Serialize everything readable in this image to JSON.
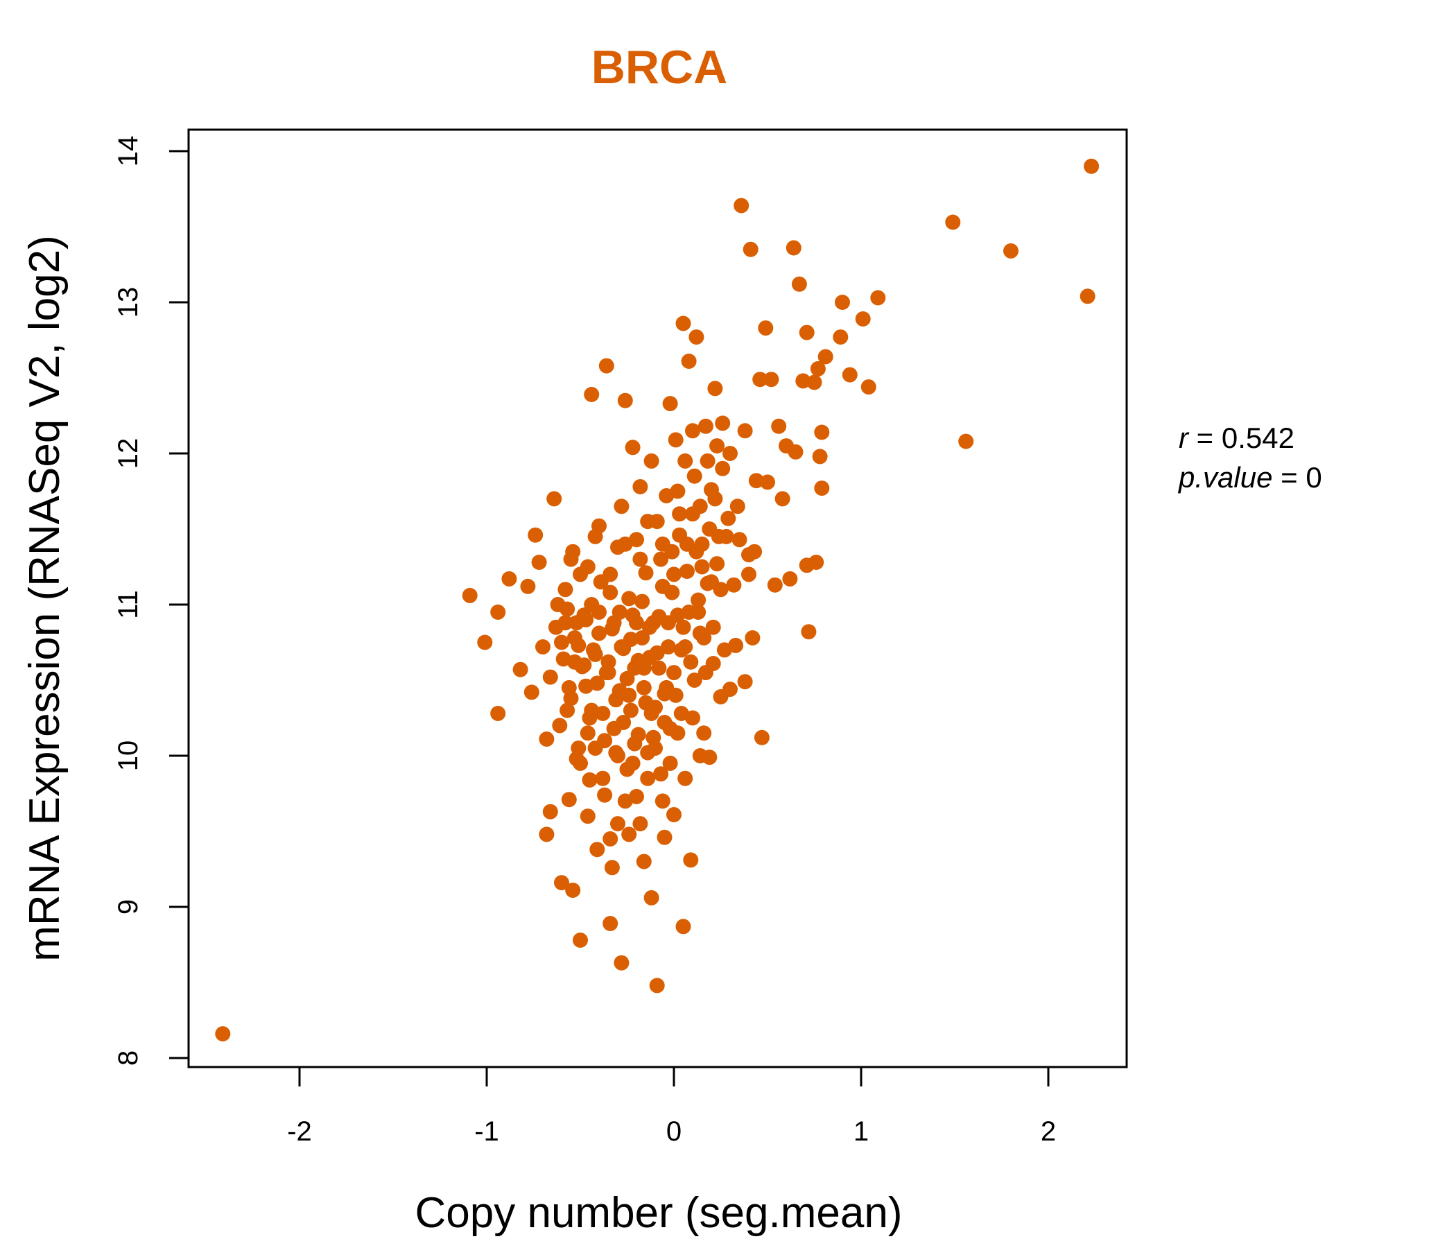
{
  "chart_data": {
    "type": "scatter",
    "title": "BRCA",
    "xlabel": "Copy number (seg.mean)",
    "ylabel": "mRNA Expression (RNASeq V2, log2)",
    "xlim": [
      -2.6,
      2.4
    ],
    "ylim": [
      8,
      14
    ],
    "xticks": [
      "-2",
      "-1",
      "0",
      "1",
      "2"
    ],
    "yticks": [
      "8",
      "9",
      "10",
      "11",
      "12",
      "13",
      "14"
    ],
    "grid": false,
    "color": "#d95f02",
    "stats": {
      "r_label": "r",
      "r_value": "0.542",
      "p_label": "p.value",
      "p_value": "0"
    },
    "points": [
      [
        -2.41,
        8.16
      ],
      [
        -1.09,
        11.06
      ],
      [
        -1.01,
        10.75
      ],
      [
        -0.94,
        10.95
      ],
      [
        -0.94,
        10.28
      ],
      [
        -0.88,
        11.17
      ],
      [
        -0.82,
        10.57
      ],
      [
        -0.78,
        11.12
      ],
      [
        -0.76,
        10.42
      ],
      [
        -0.74,
        11.46
      ],
      [
        -0.72,
        11.28
      ],
      [
        -0.7,
        10.72
      ],
      [
        -0.68,
        10.11
      ],
      [
        -0.68,
        9.48
      ],
      [
        -0.66,
        9.63
      ],
      [
        -0.64,
        11.7
      ],
      [
        -0.62,
        11.0
      ],
      [
        -0.6,
        9.16
      ],
      [
        -0.58,
        10.88
      ],
      [
        -0.57,
        10.3
      ],
      [
        -0.56,
        9.71
      ],
      [
        -0.55,
        11.3
      ],
      [
        -0.54,
        9.11
      ],
      [
        -0.53,
        10.62
      ],
      [
        -0.52,
        9.98
      ],
      [
        -0.51,
        10.73
      ],
      [
        -0.5,
        11.2
      ],
      [
        -0.5,
        8.78
      ],
      [
        -0.48,
        10.93
      ],
      [
        -0.47,
        10.46
      ],
      [
        -0.46,
        10.15
      ],
      [
        -0.45,
        9.84
      ],
      [
        -0.44,
        11.0
      ],
      [
        -0.44,
        12.39
      ],
      [
        -0.42,
        10.67
      ],
      [
        -0.41,
        9.38
      ],
      [
        -0.4,
        10.81
      ],
      [
        -0.4,
        11.52
      ],
      [
        -0.38,
        10.28
      ],
      [
        -0.37,
        9.74
      ],
      [
        -0.36,
        12.58
      ],
      [
        -0.35,
        10.55
      ],
      [
        -0.34,
        11.08
      ],
      [
        -0.34,
        8.89
      ],
      [
        -0.33,
        9.26
      ],
      [
        -0.32,
        10.88
      ],
      [
        -0.31,
        10.02
      ],
      [
        -0.3,
        11.38
      ],
      [
        -0.3,
        9.55
      ],
      [
        -0.29,
        10.43
      ],
      [
        -0.28,
        11.65
      ],
      [
        -0.28,
        8.63
      ],
      [
        -0.27,
        10.71
      ],
      [
        -0.26,
        12.35
      ],
      [
        -0.25,
        9.91
      ],
      [
        -0.24,
        11.04
      ],
      [
        -0.24,
        9.48
      ],
      [
        -0.23,
        10.3
      ],
      [
        -0.22,
        10.93
      ],
      [
        -0.22,
        12.04
      ],
      [
        -0.21,
        10.58
      ],
      [
        -0.2,
        11.43
      ],
      [
        -0.2,
        9.73
      ],
      [
        -0.19,
        10.14
      ],
      [
        -0.18,
        11.78
      ],
      [
        -0.17,
        10.78
      ],
      [
        -0.16,
        9.3
      ],
      [
        -0.16,
        10.45
      ],
      [
        -0.15,
        11.21
      ],
      [
        -0.14,
        10.02
      ],
      [
        -0.13,
        10.65
      ],
      [
        -0.12,
        11.95
      ],
      [
        -0.12,
        9.06
      ],
      [
        -0.11,
        10.88
      ],
      [
        -0.1,
        10.32
      ],
      [
        -0.09,
        11.55
      ],
      [
        -0.09,
        8.48
      ],
      [
        -0.08,
        10.58
      ],
      [
        -0.07,
        9.88
      ],
      [
        -0.06,
        11.12
      ],
      [
        -0.05,
        10.41
      ],
      [
        -0.05,
        9.46
      ],
      [
        -0.04,
        11.72
      ],
      [
        -0.03,
        10.72
      ],
      [
        -0.02,
        12.33
      ],
      [
        -0.02,
        10.18
      ],
      [
        -0.01,
        11.35
      ],
      [
        0.0,
        10.55
      ],
      [
        0.0,
        9.61
      ],
      [
        0.01,
        12.09
      ],
      [
        0.02,
        10.93
      ],
      [
        0.03,
        11.46
      ],
      [
        0.04,
        10.28
      ],
      [
        0.05,
        12.86
      ],
      [
        0.05,
        8.87
      ],
      [
        0.06,
        10.72
      ],
      [
        0.07,
        11.22
      ],
      [
        0.08,
        12.61
      ],
      [
        0.09,
        9.31
      ],
      [
        0.1,
        11.6
      ],
      [
        0.11,
        10.5
      ],
      [
        0.12,
        12.77
      ],
      [
        0.13,
        11.03
      ],
      [
        0.14,
        10.81
      ],
      [
        0.15,
        11.4
      ],
      [
        0.16,
        10.15
      ],
      [
        0.17,
        12.18
      ],
      [
        0.18,
        11.14
      ],
      [
        0.19,
        9.99
      ],
      [
        0.2,
        11.76
      ],
      [
        0.21,
        10.61
      ],
      [
        0.22,
        12.43
      ],
      [
        0.23,
        11.27
      ],
      [
        0.25,
        10.39
      ],
      [
        0.26,
        11.9
      ],
      [
        0.27,
        10.7
      ],
      [
        0.29,
        11.57
      ],
      [
        0.3,
        10.44
      ],
      [
        0.32,
        11.13
      ],
      [
        0.33,
        10.73
      ],
      [
        0.35,
        11.43
      ],
      [
        0.36,
        13.64
      ],
      [
        0.38,
        10.49
      ],
      [
        0.4,
        11.33
      ],
      [
        0.41,
        13.35
      ],
      [
        0.42,
        10.78
      ],
      [
        0.44,
        11.82
      ],
      [
        0.46,
        12.49
      ],
      [
        0.47,
        10.12
      ],
      [
        0.49,
        12.83
      ],
      [
        0.5,
        11.81
      ],
      [
        0.52,
        12.49
      ],
      [
        0.54,
        11.13
      ],
      [
        0.56,
        12.18
      ],
      [
        0.58,
        11.7
      ],
      [
        0.6,
        12.05
      ],
      [
        0.62,
        11.17
      ],
      [
        0.64,
        13.36
      ],
      [
        0.65,
        12.01
      ],
      [
        0.67,
        13.12
      ],
      [
        0.69,
        12.48
      ],
      [
        0.71,
        12.8
      ],
      [
        0.71,
        11.26
      ],
      [
        0.72,
        10.82
      ],
      [
        0.75,
        12.47
      ],
      [
        0.76,
        11.28
      ],
      [
        0.77,
        12.56
      ],
      [
        0.78,
        11.98
      ],
      [
        0.79,
        12.14
      ],
      [
        0.79,
        11.77
      ],
      [
        0.81,
        12.64
      ],
      [
        0.89,
        12.77
      ],
      [
        0.9,
        13.0
      ],
      [
        0.94,
        12.52
      ],
      [
        1.01,
        12.89
      ],
      [
        1.04,
        12.44
      ],
      [
        1.09,
        13.03
      ],
      [
        1.49,
        13.53
      ],
      [
        1.56,
        12.08
      ],
      [
        1.8,
        13.34
      ],
      [
        2.21,
        13.04
      ],
      [
        2.23,
        13.9
      ],
      [
        -0.66,
        10.52
      ],
      [
        -0.63,
        10.85
      ],
      [
        -0.61,
        10.2
      ],
      [
        -0.59,
        10.64
      ],
      [
        -0.57,
        10.97
      ],
      [
        -0.55,
        10.38
      ],
      [
        -0.53,
        10.78
      ],
      [
        -0.51,
        10.05
      ],
      [
        -0.49,
        10.59
      ],
      [
        -0.47,
        10.9
      ],
      [
        -0.45,
        10.25
      ],
      [
        -0.43,
        10.7
      ],
      [
        -0.41,
        10.48
      ],
      [
        -0.39,
        11.15
      ],
      [
        -0.37,
        10.1
      ],
      [
        -0.35,
        10.62
      ],
      [
        -0.33,
        10.84
      ],
      [
        -0.31,
        10.37
      ],
      [
        -0.29,
        10.95
      ],
      [
        -0.27,
        10.22
      ],
      [
        -0.25,
        10.51
      ],
      [
        -0.23,
        10.77
      ],
      [
        -0.21,
        10.08
      ],
      [
        -0.19,
        10.63
      ],
      [
        -0.17,
        11.02
      ],
      [
        -0.15,
        10.35
      ],
      [
        -0.13,
        10.85
      ],
      [
        -0.11,
        10.12
      ],
      [
        -0.09,
        10.68
      ],
      [
        -0.07,
        11.3
      ],
      [
        -0.05,
        10.22
      ],
      [
        -0.03,
        10.88
      ],
      [
        -0.01,
        11.08
      ],
      [
        0.01,
        10.4
      ],
      [
        0.03,
        11.6
      ],
      [
        0.05,
        10.85
      ],
      [
        0.07,
        11.4
      ],
      [
        0.09,
        10.62
      ],
      [
        0.11,
        11.85
      ],
      [
        0.13,
        10.95
      ],
      [
        0.15,
        11.25
      ],
      [
        0.17,
        10.55
      ],
      [
        0.19,
        11.5
      ],
      [
        0.21,
        10.85
      ],
      [
        0.23,
        12.05
      ],
      [
        0.25,
        11.1
      ],
      [
        -0.6,
        10.75
      ],
      [
        -0.56,
        10.45
      ],
      [
        -0.52,
        10.88
      ],
      [
        -0.48,
        10.6
      ],
      [
        -0.44,
        10.3
      ],
      [
        -0.4,
        10.95
      ],
      [
        -0.36,
        10.55
      ],
      [
        -0.32,
        10.18
      ],
      [
        -0.28,
        10.72
      ],
      [
        -0.24,
        10.4
      ],
      [
        -0.2,
        10.88
      ],
      [
        -0.16,
        10.58
      ],
      [
        -0.12,
        10.28
      ],
      [
        -0.08,
        10.92
      ],
      [
        -0.04,
        10.45
      ],
      [
        0.0,
        11.2
      ],
      [
        0.04,
        10.7
      ],
      [
        0.08,
        10.95
      ],
      [
        0.12,
        11.35
      ],
      [
        0.16,
        10.78
      ],
      [
        0.2,
        11.15
      ],
      [
        0.24,
        11.45
      ],
      [
        -0.5,
        9.95
      ],
      [
        -0.46,
        9.6
      ],
      [
        -0.42,
        10.05
      ],
      [
        -0.38,
        9.85
      ],
      [
        -0.34,
        9.45
      ],
      [
        -0.3,
        10.0
      ],
      [
        -0.26,
        9.7
      ],
      [
        -0.22,
        9.95
      ],
      [
        -0.18,
        9.55
      ],
      [
        -0.14,
        9.85
      ],
      [
        -0.1,
        10.05
      ],
      [
        -0.06,
        9.7
      ],
      [
        -0.02,
        9.95
      ],
      [
        0.02,
        10.15
      ],
      [
        0.06,
        9.85
      ],
      [
        0.1,
        10.25
      ],
      [
        0.14,
        10.0
      ],
      [
        -0.58,
        11.1
      ],
      [
        -0.54,
        11.35
      ],
      [
        -0.46,
        11.25
      ],
      [
        -0.42,
        11.45
      ],
      [
        -0.34,
        11.2
      ],
      [
        -0.26,
        11.4
      ],
      [
        -0.18,
        11.3
      ],
      [
        -0.14,
        11.55
      ],
      [
        -0.06,
        11.4
      ],
      [
        0.02,
        11.75
      ],
      [
        0.06,
        11.95
      ],
      [
        0.1,
        12.15
      ],
      [
        0.14,
        11.65
      ],
      [
        0.18,
        11.95
      ],
      [
        0.22,
        11.7
      ],
      [
        0.26,
        12.2
      ],
      [
        0.28,
        11.45
      ],
      [
        0.3,
        12.0
      ],
      [
        0.34,
        11.65
      ],
      [
        0.38,
        12.15
      ],
      [
        0.4,
        11.2
      ],
      [
        0.43,
        11.35
      ]
    ]
  }
}
